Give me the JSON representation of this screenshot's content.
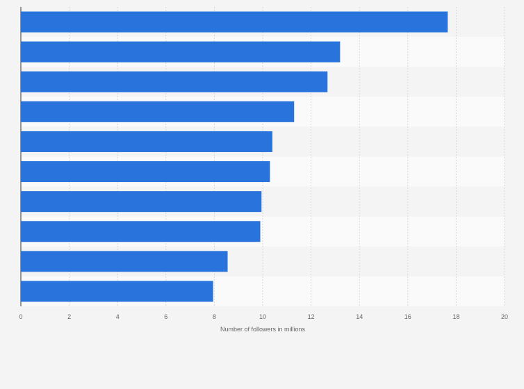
{
  "chart_data": {
    "type": "bar",
    "orientation": "horizontal",
    "categories": [
      "",
      "",
      "",
      "",
      "",
      "",
      "",
      "",
      "",
      ""
    ],
    "values": [
      17.65,
      13.2,
      12.68,
      11.3,
      10.4,
      10.3,
      9.95,
      9.9,
      8.55,
      7.95
    ],
    "xlabel": "Number of followers in millions",
    "ylabel": "",
    "xlim": [
      0,
      20
    ],
    "x_ticks": [
      "0",
      "2",
      "4",
      "6",
      "8",
      "10",
      "12",
      "14",
      "16",
      "18",
      "20"
    ],
    "grid": "vertical dashed",
    "legend": "none",
    "bar_color": "#2874dc",
    "band_colors": [
      "#f4f4f4",
      "#fafafa"
    ]
  }
}
